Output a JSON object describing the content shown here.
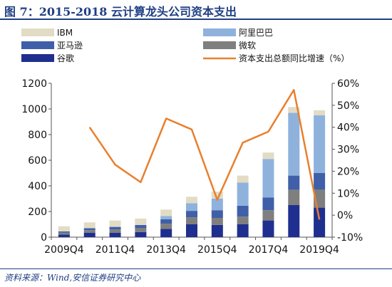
{
  "header": {
    "title": "图 7：2015-2018 云计算龙头公司资本支出"
  },
  "footer": {
    "source": "资料来源：Wind,安信证券研究中心"
  },
  "chart_data": {
    "type": "bar",
    "stacked": true,
    "categories": [
      "2009Q4",
      "2010Q4",
      "2011Q4",
      "2012Q4",
      "2013Q4",
      "2014Q4",
      "2015Q4",
      "2016Q4",
      "2017Q4",
      "2018Q4",
      "2019Q4"
    ],
    "x_tick_labels": [
      "2009Q4",
      "2011Q4",
      "2013Q4",
      "2015Q4",
      "2017Q4",
      "2019Q4"
    ],
    "left_axis": {
      "ylim": [
        0,
        1200
      ],
      "ticks": [
        0,
        200,
        400,
        600,
        800,
        1000,
        1200
      ]
    },
    "right_axis": {
      "ylim": [
        -10,
        60
      ],
      "ticks": [
        "-10%",
        "0%",
        "10%",
        "20%",
        "30%",
        "40%",
        "50%",
        "60%"
      ]
    },
    "legend_placement": "top",
    "series": [
      {
        "name": "谷歌",
        "color": "#1f2f8f",
        "values": [
          20,
          35,
          35,
          40,
          65,
          100,
          95,
          100,
          130,
          250,
          230
        ]
      },
      {
        "name": "微软",
        "color": "#7f7f7f",
        "values": [
          15,
          20,
          25,
          30,
          40,
          55,
          55,
          60,
          80,
          120,
          140
        ]
      },
      {
        "name": "亚马逊",
        "color": "#3f5fa8",
        "values": [
          10,
          15,
          20,
          25,
          35,
          50,
          60,
          85,
          100,
          110,
          130
        ]
      },
      {
        "name": "阿里巴巴",
        "color": "#8fb2dd",
        "values": [
          0,
          0,
          0,
          0,
          25,
          60,
          90,
          180,
          300,
          490,
          450
        ]
      },
      {
        "name": "IBM",
        "color": "#e2dcc4",
        "values": [
          40,
          45,
          50,
          50,
          50,
          50,
          55,
          55,
          50,
          45,
          40
        ]
      }
    ],
    "line_series": {
      "name": "资本支出总额同比增速（%）",
      "color": "#e8802e",
      "axis": "right",
      "points": [
        {
          "x": "2010Q4",
          "y": 40
        },
        {
          "x": "2011Q4",
          "y": 23
        },
        {
          "x": "2012Q4",
          "y": 15
        },
        {
          "x": "2013Q4",
          "y": 44
        },
        {
          "x": "2014Q4",
          "y": 39
        },
        {
          "x": "2015Q4",
          "y": 7
        },
        {
          "x": "2016Q4",
          "y": 33
        },
        {
          "x": "2017Q4",
          "y": 38
        },
        {
          "x": "2018Q4",
          "y": 57
        },
        {
          "x": "2019Q4",
          "y": -2
        }
      ]
    }
  }
}
